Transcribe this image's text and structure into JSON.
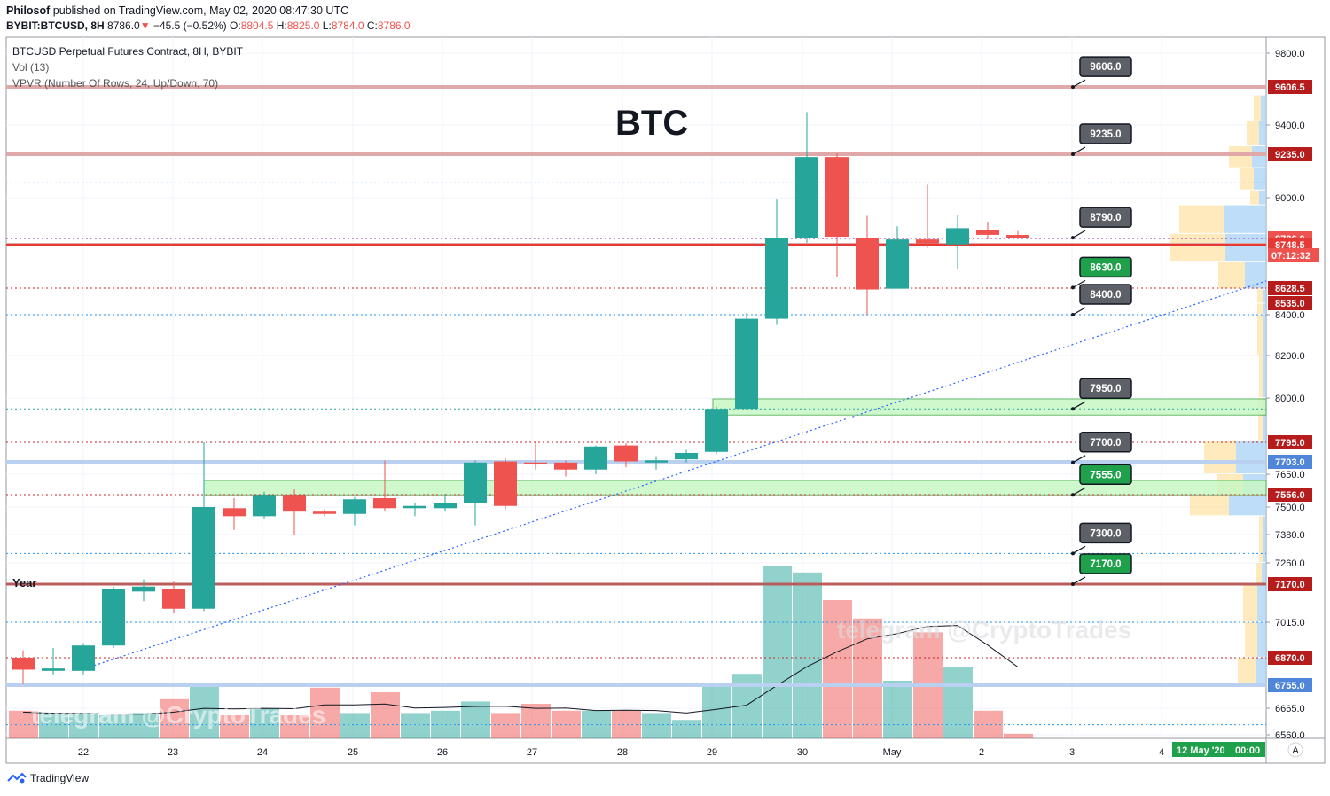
{
  "header": {
    "publisher": "Philosof",
    "published_text": "published on TradingView.com, May 02, 2020 08:47:30 UTC",
    "symbol": "BYBIT:BTCUSD, 8H",
    "last": "8786.0",
    "change": "−45.5 (−0.52%)",
    "open_label": "O:",
    "open": "8804.5",
    "high_label": "H:",
    "high": "8825.0",
    "low_label": "L:",
    "low": "8784.0",
    "close_label": "C:",
    "close": "8786.0"
  },
  "legend": {
    "line1": "BTCUSD Perpetual Futures Contract, 8H, BYBIT",
    "line2": "Vol (13)",
    "line3": "VPVR (Number Of Rows, 24, Up/Down, 70)"
  },
  "annotation_title": "BTC",
  "watermark": "telegram @CryptoTrades",
  "year_label": "Year",
  "footer": {
    "brand": "TradingView"
  },
  "colors": {
    "up": "#26a69a",
    "down": "#ef5350",
    "level": "#d9a0a0",
    "green_zone": "#c8f7c5"
  },
  "chart_data": {
    "type": "candlestick",
    "y_ticks": [
      9800.0,
      9400.0,
      9000.0,
      8400.0,
      8200.0,
      8000.0,
      7650.0,
      7500.0,
      7380.0,
      7260.0,
      7015.0,
      6665.0,
      6560.0
    ],
    "y_tick_labels": [
      "9800.0",
      "9400.0",
      "9000.0",
      "8400.0",
      "8200.0",
      "8000.0",
      "7650.0",
      "7500.0",
      "7380.0",
      "7260.0",
      "7015.0",
      "6665.0",
      "6560.0"
    ],
    "x_ticks": [
      "22",
      "23",
      "24",
      "25",
      "26",
      "27",
      "28",
      "29",
      "30",
      "May",
      "2",
      "3",
      "4"
    ],
    "price_badges": [
      {
        "price": 9606.5,
        "label": "9606.5",
        "color": "#b71c1c"
      },
      {
        "price": 9235.0,
        "label": "9235.0",
        "color": "#b71c1c"
      },
      {
        "price": 8786.0,
        "label": "8786.0",
        "color": "#ef5350"
      },
      {
        "price": 8748.5,
        "label": "8748.5",
        "color": "#e53935"
      },
      {
        "price": 8628.5,
        "label": "8628.5",
        "color": "#b71c1c"
      },
      {
        "price": 8535.0,
        "label": "8535.0",
        "color": "#b71c1c"
      },
      {
        "price": 7795.0,
        "label": "7795.0",
        "color": "#b71c1c"
      },
      {
        "price": 7703.0,
        "label": "7703.0",
        "color": "#4f86d9"
      },
      {
        "price": 7556.0,
        "label": "7556.0",
        "color": "#b71c1c"
      },
      {
        "price": 7170.0,
        "label": "7170.0",
        "color": "#b71c1c"
      },
      {
        "price": 6870.0,
        "label": "6870.0",
        "color": "#b71c1c"
      },
      {
        "price": 6755.0,
        "label": "6755.0",
        "color": "#4f86d9"
      }
    ],
    "countdown": "07:12:32",
    "date_badge": "12 May '20",
    "time_badge": "00:00",
    "auto_badge": "A",
    "callouts": [
      {
        "label": "9606.0",
        "price": 9606.0,
        "green": false
      },
      {
        "label": "9235.0",
        "price": 9235.0,
        "green": false
      },
      {
        "label": "8790.0",
        "price": 8790.0,
        "green": false
      },
      {
        "label": "8630.0",
        "price": 8630.0,
        "green": true
      },
      {
        "label": "8400.0",
        "price": 8400.0,
        "green": false
      },
      {
        "label": "7950.0",
        "price": 7950.0,
        "green": false
      },
      {
        "label": "7700.0",
        "price": 7700.0,
        "green": false
      },
      {
        "label": "7555.0",
        "price": 7555.0,
        "green": true
      },
      {
        "label": "7300.0",
        "price": 7300.0,
        "green": false
      },
      {
        "label": "7170.0",
        "price": 7170.0,
        "green": true
      }
    ],
    "candles": [
      {
        "o": 6870,
        "h": 6900,
        "l": 6760,
        "c": 6820
      },
      {
        "o": 6815,
        "h": 6910,
        "l": 6800,
        "c": 6825
      },
      {
        "o": 6815,
        "h": 6930,
        "l": 6800,
        "c": 6920
      },
      {
        "o": 6920,
        "h": 7160,
        "l": 6910,
        "c": 7150
      },
      {
        "o": 7140,
        "h": 7190,
        "l": 7100,
        "c": 7160
      },
      {
        "o": 7150,
        "h": 7180,
        "l": 7050,
        "c": 7070
      },
      {
        "o": 7070,
        "h": 7795,
        "l": 7060,
        "c": 7500
      },
      {
        "o": 7495,
        "h": 7540,
        "l": 7400,
        "c": 7460
      },
      {
        "o": 7460,
        "h": 7570,
        "l": 7450,
        "c": 7555
      },
      {
        "o": 7555,
        "h": 7580,
        "l": 7380,
        "c": 7480
      },
      {
        "o": 7480,
        "h": 7490,
        "l": 7460,
        "c": 7470
      },
      {
        "o": 7470,
        "h": 7545,
        "l": 7420,
        "c": 7535
      },
      {
        "o": 7540,
        "h": 7710,
        "l": 7480,
        "c": 7495
      },
      {
        "o": 7495,
        "h": 7520,
        "l": 7460,
        "c": 7505
      },
      {
        "o": 7495,
        "h": 7560,
        "l": 7480,
        "c": 7520
      },
      {
        "o": 7520,
        "h": 7710,
        "l": 7420,
        "c": 7700
      },
      {
        "o": 7705,
        "h": 7720,
        "l": 7490,
        "c": 7505
      },
      {
        "o": 7700,
        "h": 7800,
        "l": 7670,
        "c": 7695
      },
      {
        "o": 7700,
        "h": 7710,
        "l": 7640,
        "c": 7670
      },
      {
        "o": 7670,
        "h": 7780,
        "l": 7650,
        "c": 7775
      },
      {
        "o": 7780,
        "h": 7790,
        "l": 7680,
        "c": 7705
      },
      {
        "o": 7700,
        "h": 7730,
        "l": 7670,
        "c": 7710
      },
      {
        "o": 7715,
        "h": 7760,
        "l": 7700,
        "c": 7745
      },
      {
        "o": 7750,
        "h": 7960,
        "l": 7740,
        "c": 7950
      },
      {
        "o": 7950,
        "h": 8420,
        "l": 7945,
        "c": 8380
      },
      {
        "o": 8380,
        "h": 8990,
        "l": 8350,
        "c": 8790
      },
      {
        "o": 8790,
        "h": 9470,
        "l": 8760,
        "c": 9220
      },
      {
        "o": 9220,
        "h": 9240,
        "l": 8660,
        "c": 8795
      },
      {
        "o": 8790,
        "h": 8905,
        "l": 8400,
        "c": 8620
      },
      {
        "o": 8625,
        "h": 8850,
        "l": 8625,
        "c": 8780
      },
      {
        "o": 8780,
        "h": 9070,
        "l": 8740,
        "c": 8755
      },
      {
        "o": 8750,
        "h": 8910,
        "l": 8680,
        "c": 8840
      },
      {
        "o": 8830,
        "h": 8870,
        "l": 8780,
        "c": 8805
      },
      {
        "o": 8804.5,
        "h": 8825,
        "l": 8784,
        "c": 8786
      }
    ],
    "volume": [
      0.12,
      0.11,
      0.11,
      0.1,
      0.11,
      0.17,
      0.24,
      0.1,
      0.13,
      0.1,
      0.22,
      0.11,
      0.2,
      0.11,
      0.12,
      0.16,
      0.11,
      0.15,
      0.12,
      0.12,
      0.12,
      0.11,
      0.08,
      0.23,
      0.28,
      0.75,
      0.72,
      0.6,
      0.52,
      0.25,
      0.46,
      0.31,
      0.12,
      0.02
    ]
  }
}
